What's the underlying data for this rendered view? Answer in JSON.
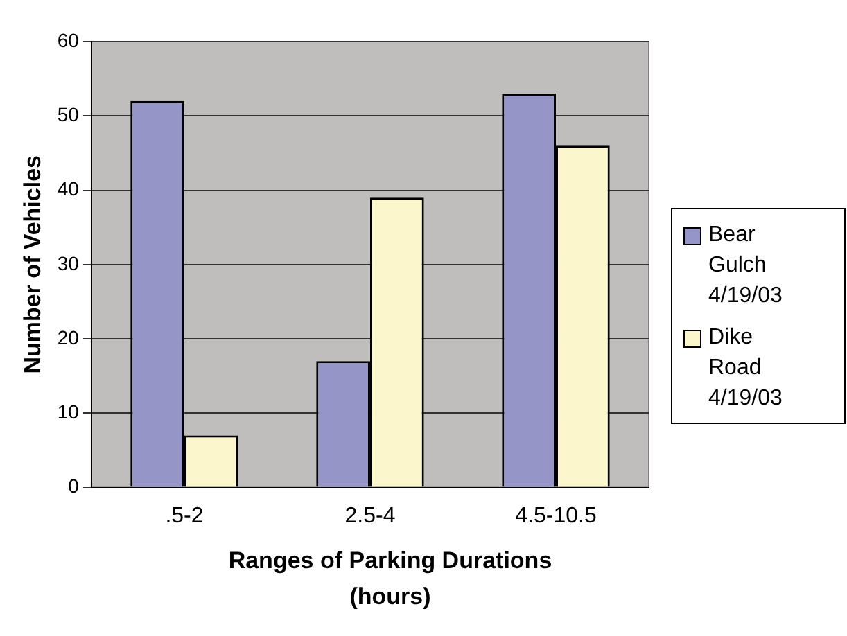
{
  "chart_data": {
    "type": "bar",
    "xlabel": "Ranges of Parking Durations (hours)",
    "ylabel": "Number of Vehicles",
    "categories": [
      ".5-2",
      "2.5-4",
      "4.5-10.5"
    ],
    "series": [
      {
        "name": "Bear Gulch 4/19/03",
        "color": "#9595c8",
        "values": [
          52,
          17,
          53
        ]
      },
      {
        "name": "Dike Road 4/19/03",
        "color": "#fbf6cc",
        "values": [
          7,
          39,
          46
        ]
      }
    ],
    "ylim": [
      0,
      60
    ],
    "yticks": [
      0,
      10,
      20,
      30,
      40,
      50,
      60
    ],
    "grid": "y",
    "legend": "right"
  }
}
